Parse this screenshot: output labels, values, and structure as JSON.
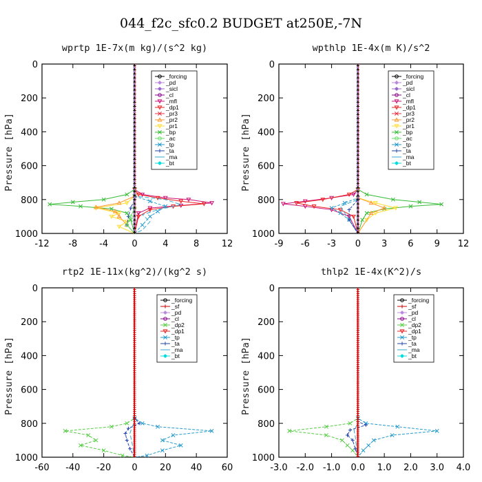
{
  "title": "044_f2c_sfc0.2  BUDGET at250E,-7N",
  "colors": {
    "forcing": "#000000",
    "pd": "#bb88dd",
    "sicl": "#9966cc",
    "cl": "#880088",
    "mfl": "#cc1177",
    "dp1": "#ee2222",
    "pr3": "#ee3344",
    "pr2": "#ff9933",
    "pr1": "#ffdd33",
    "bp": "#33bb33",
    "ac": "#66dd66",
    "tp": "#2299cc",
    "ta": "#2244aa",
    "ma": "#33aacc",
    "bt": "#00dddd",
    "sf": "#cc0000",
    "dp2": "#55cc44"
  },
  "chart_data": [
    {
      "type": "line",
      "title": "wprtp  1E-7x(m kg)/(s^2 kg)",
      "ylabel": "Pressure [hPa]",
      "ylim": [
        1000,
        0
      ],
      "xlim": [
        -12,
        12
      ],
      "xticks": [
        "-12",
        "-8",
        "-4",
        "0",
        "4",
        "8",
        "12"
      ],
      "yticks": [
        "0",
        "200",
        "400",
        "600",
        "800",
        "1000"
      ],
      "legend": [
        "_forcing",
        "_pd",
        "_sicl",
        "_cl",
        "_mfl",
        "_dp1",
        "_pr3",
        "_pr2",
        "_pr1",
        "_bp",
        "_ac",
        "_tp",
        "_ta",
        "_ma",
        "_bt"
      ],
      "legend_placement": "top-right",
      "series": [
        {
          "name": "_mfl",
          "p": [
            0,
            740,
            770,
            790,
            800,
            820,
            835,
            850,
            880,
            1000
          ],
          "v": [
            0,
            0,
            1,
            4,
            7,
            10,
            6,
            2,
            0.5,
            0
          ]
        },
        {
          "name": "_dp1",
          "p": [
            0,
            740,
            770,
            790,
            810,
            825,
            840,
            860,
            900,
            1000
          ],
          "v": [
            0,
            0,
            0.5,
            3,
            6,
            9,
            5,
            2,
            0.5,
            0
          ]
        },
        {
          "name": "_bp",
          "p": [
            0,
            740,
            770,
            800,
            815,
            828,
            840,
            855,
            880,
            920,
            1000
          ],
          "v": [
            0,
            0,
            -1,
            -4,
            -8,
            -11,
            -7,
            -3,
            -1,
            -0.5,
            0
          ]
        },
        {
          "name": "_pr1",
          "p": [
            0,
            780,
            820,
            850,
            880,
            900,
            930,
            960,
            1000
          ],
          "v": [
            0,
            0,
            -1,
            -5,
            -2,
            -3,
            -1,
            -2,
            0
          ]
        },
        {
          "name": "_pr2",
          "p": [
            0,
            780,
            820,
            845,
            870,
            900,
            950,
            1000
          ],
          "v": [
            0,
            0,
            -2,
            -5,
            -2.5,
            -2,
            -1,
            0
          ]
        },
        {
          "name": "_tp",
          "p": [
            0,
            780,
            810,
            840,
            870,
            900,
            950,
            1000
          ],
          "v": [
            0,
            0,
            2,
            4,
            3,
            2,
            1,
            0
          ]
        },
        {
          "name": "_ma",
          "p": [
            0,
            780,
            800,
            830,
            860,
            890,
            930,
            980,
            1000
          ],
          "v": [
            0,
            0,
            4,
            6,
            3,
            1,
            2,
            1,
            0
          ]
        },
        {
          "name": "_ta",
          "p": [
            0,
            800,
            850,
            900,
            950,
            1000
          ],
          "v": [
            0,
            0,
            -0.5,
            -0.8,
            -1,
            0
          ]
        },
        {
          "name": "_ac",
          "p": [
            0,
            850,
            900,
            950,
            1000
          ],
          "v": [
            0,
            0,
            -0.5,
            -1,
            0
          ]
        },
        {
          "name": "_forcing",
          "p": [
            0,
            1000
          ],
          "v": [
            0,
            0
          ]
        }
      ]
    },
    {
      "type": "line",
      "title": "wpthlp  1E-4x(m K)/s^2",
      "ylabel": "Pressure [hPa]",
      "ylim": [
        1000,
        0
      ],
      "xlim": [
        -9,
        12
      ],
      "xticks": [
        "-9",
        "-6",
        "-3",
        "0",
        "3",
        "6",
        "9",
        "12"
      ],
      "yticks": [
        "0",
        "200",
        "400",
        "600",
        "800",
        "1000"
      ],
      "legend": [
        "_forcing",
        "_pd",
        "_sicl",
        "_cl",
        "_mfl",
        "_dp1",
        "_pr3",
        "_pr2",
        "_pr1",
        "_bp",
        "_ac",
        "_tp",
        "_ta",
        "_ma",
        "_bt"
      ],
      "legend_placement": "top-right",
      "series": [
        {
          "name": "_mfl",
          "p": [
            0,
            740,
            770,
            790,
            810,
            825,
            840,
            860,
            900,
            1000
          ],
          "v": [
            0,
            0,
            -0.5,
            -3,
            -6,
            -8.5,
            -6,
            -3,
            -1,
            0
          ]
        },
        {
          "name": "_dp1",
          "p": [
            0,
            740,
            770,
            800,
            820,
            840,
            860,
            900,
            1000
          ],
          "v": [
            0,
            0,
            -1,
            -4,
            -7,
            -5,
            -2,
            -0.5,
            0
          ]
        },
        {
          "name": "_bp",
          "p": [
            0,
            740,
            770,
            800,
            815,
            828,
            840,
            855,
            880,
            920,
            1000
          ],
          "v": [
            0,
            0,
            1,
            4,
            7,
            9.5,
            6,
            3,
            1,
            0.5,
            0
          ]
        },
        {
          "name": "_pr1",
          "p": [
            0,
            790,
            820,
            850,
            880,
            920,
            1000
          ],
          "v": [
            0,
            0,
            2,
            4.3,
            2,
            1,
            0
          ]
        },
        {
          "name": "_pr2",
          "p": [
            0,
            790,
            820,
            850,
            880,
            1000
          ],
          "v": [
            0,
            0,
            1.5,
            3,
            1.5,
            0
          ]
        },
        {
          "name": "_tp",
          "p": [
            0,
            790,
            820,
            850,
            880,
            920,
            1000
          ],
          "v": [
            0,
            0,
            -1.5,
            -3,
            -2,
            -1,
            0
          ]
        },
        {
          "name": "_ma",
          "p": [
            0,
            800,
            840,
            880,
            920,
            1000
          ],
          "v": [
            0,
            0,
            -2,
            -1.5,
            -1,
            0
          ]
        },
        {
          "name": "_ta",
          "p": [
            0,
            800,
            860,
            920,
            1000
          ],
          "v": [
            0,
            0,
            -1,
            -1,
            0
          ]
        },
        {
          "name": "_forcing",
          "p": [
            0,
            1000
          ],
          "v": [
            0,
            0
          ]
        }
      ]
    },
    {
      "type": "line",
      "title": "rtp2  1E-11x(kg^2)/(kg^2 s)",
      "ylabel": "Pressure [hPa]",
      "ylim": [
        1000,
        0
      ],
      "xlim": [
        -60,
        60
      ],
      "xticks": [
        "-60",
        "-40",
        "-20",
        "0",
        "20",
        "40",
        "60"
      ],
      "yticks": [
        "0",
        "200",
        "400",
        "600",
        "800",
        "1000"
      ],
      "legend": [
        "_forcing",
        "_sf",
        "_pd",
        "_cl",
        "_dp2",
        "_dp1",
        "_tp",
        "_ta",
        "_ma",
        "_bt"
      ],
      "legend_placement": "top-right",
      "series": [
        {
          "name": "_dp2",
          "p": [
            0,
            770,
            800,
            820,
            845,
            870,
            900,
            930,
            960,
            990,
            1000
          ],
          "v": [
            0,
            0,
            -5,
            -15,
            -45,
            -30,
            -25,
            -35,
            -20,
            -8,
            0
          ]
        },
        {
          "name": "_tp",
          "p": [
            0,
            770,
            800,
            820,
            845,
            870,
            900,
            930,
            960,
            990,
            1000
          ],
          "v": [
            0,
            0,
            5,
            15,
            50,
            25,
            18,
            30,
            18,
            8,
            0
          ]
        },
        {
          "name": "_ta",
          "p": [
            0,
            770,
            800,
            830,
            860,
            900,
            950,
            1000
          ],
          "v": [
            0,
            0,
            3,
            -4,
            -6,
            -5,
            -3,
            0
          ]
        },
        {
          "name": "_ma",
          "p": [
            0,
            790,
            830,
            860,
            900,
            950,
            1000
          ],
          "v": [
            0,
            0,
            -2,
            -3,
            -2,
            -1,
            0
          ]
        },
        {
          "name": "_forcing",
          "p": [
            0,
            1000
          ],
          "v": [
            0,
            0
          ]
        }
      ]
    },
    {
      "type": "line",
      "title": "thlp2  1E-4x(K^2)/s",
      "ylabel": "Pressure [hPa]",
      "ylim": [
        1000,
        0
      ],
      "xlim": [
        -3.0,
        4.0
      ],
      "xticks": [
        "-3.0",
        "-2.0",
        "-1.0",
        "0.0",
        "1.0",
        "2.0",
        "3.0",
        "4.0"
      ],
      "yticks": [
        "0",
        "200",
        "400",
        "600",
        "800",
        "1000"
      ],
      "legend": [
        "_forcing",
        "_sf",
        "_pd",
        "_cl",
        "_dp2",
        "_dp1",
        "_tp",
        "_ta",
        "_ma",
        "_bt"
      ],
      "legend_placement": "top-right",
      "series": [
        {
          "name": "_dp2",
          "p": [
            0,
            770,
            800,
            820,
            845,
            870,
            900,
            930,
            960,
            1000
          ],
          "v": [
            0,
            0,
            -0.3,
            -1.2,
            -2.6,
            -1.2,
            -0.6,
            -0.4,
            -0.2,
            0
          ]
        },
        {
          "name": "_tp",
          "p": [
            0,
            770,
            800,
            820,
            845,
            870,
            900,
            930,
            960,
            1000
          ],
          "v": [
            0,
            0,
            0.3,
            1.5,
            3.0,
            1.3,
            0.6,
            0.4,
            0.2,
            0
          ]
        },
        {
          "name": "_ta",
          "p": [
            0,
            790,
            810,
            840,
            870,
            900,
            950,
            1000
          ],
          "v": [
            0,
            0,
            0.3,
            -0.3,
            -0.4,
            -0.2,
            -0.1,
            0
          ]
        },
        {
          "name": "_ma",
          "p": [
            0,
            800,
            840,
            880,
            950,
            1000
          ],
          "v": [
            0,
            0,
            -0.15,
            -0.1,
            -0.05,
            0
          ]
        },
        {
          "name": "_forcing",
          "p": [
            0,
            1000
          ],
          "v": [
            0,
            0
          ]
        }
      ]
    }
  ]
}
